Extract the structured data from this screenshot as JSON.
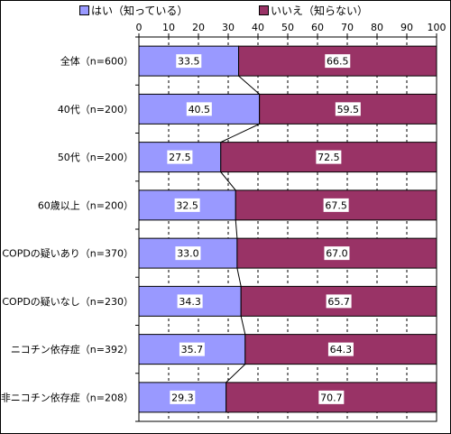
{
  "legend": {
    "yes_label": "はい（知っている）",
    "no_label": "いいえ（知らない）"
  },
  "colors": {
    "yes": "#9999ff",
    "no": "#993366",
    "border": "#000000"
  },
  "chart_data": {
    "type": "bar",
    "orientation": "horizontal",
    "stacked": true,
    "categories": [
      "全体（n=600）",
      "40代（n=200）",
      "50代（n=200）",
      "60歳以上（n=200）",
      "COPDの疑いあり（n=370）",
      "COPDの疑いなし（n=230）",
      "ニコチン依存症（n=392）",
      "非ニコチン依存症（n=208）"
    ],
    "series": [
      {
        "name": "はい（知っている）",
        "values": [
          33.5,
          40.5,
          27.5,
          32.5,
          33.0,
          34.3,
          35.7,
          29.3
        ]
      },
      {
        "name": "いいえ（知らない）",
        "values": [
          66.5,
          59.5,
          72.5,
          67.5,
          67.0,
          65.7,
          64.3,
          70.7
        ]
      }
    ],
    "value_labels": {
      "yes": [
        "33.5",
        "40.5",
        "27.5",
        "32.5",
        "33.0",
        "34.3",
        "35.7",
        "29.3"
      ],
      "no": [
        "66.5",
        "59.5",
        "72.5",
        "67.5",
        "67.0",
        "65.7",
        "64.3",
        "70.7"
      ]
    },
    "x_ticks": [
      "0",
      "10",
      "20",
      "30",
      "40",
      "50",
      "60",
      "70",
      "80",
      "90",
      "100"
    ],
    "xlim": [
      0,
      100
    ],
    "series_lines": true,
    "grid": "dashed vertical",
    "legend_position": "top"
  }
}
